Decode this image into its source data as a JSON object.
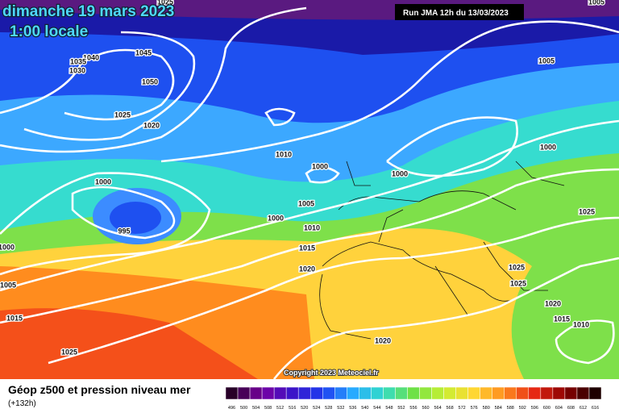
{
  "header": {
    "title": "dimanche 19 mars 2023",
    "time": "1:00 locale",
    "run": "Run JMA 12h du 13/03/2023"
  },
  "isobar_labels": [
    "1025",
    "1005",
    "1045",
    "1040",
    "1035",
    "1030",
    "1050",
    "1025",
    "1020",
    "1005",
    "1010",
    "1000",
    "1000",
    "1000",
    "1000",
    "995",
    "1000",
    "1000",
    "1005",
    "1010",
    "1015",
    "1020",
    "1025",
    "1025",
    "1025",
    "1020",
    "1015",
    "1010",
    "1005",
    "1015",
    "1025",
    "1020"
  ],
  "copyright": "Copyright 2023 Meteociel.fr",
  "footer": {
    "title": "Géop z500 et pression niveau mer",
    "lead": "(+132h)"
  },
  "colorbar": {
    "ticks": [
      496,
      500,
      504,
      508,
      512,
      516,
      520,
      524,
      528,
      532,
      536,
      540,
      544,
      548,
      552,
      556,
      560,
      564,
      568,
      572,
      576,
      580,
      584,
      588,
      592,
      596,
      600,
      604,
      608,
      612,
      616
    ]
  }
}
